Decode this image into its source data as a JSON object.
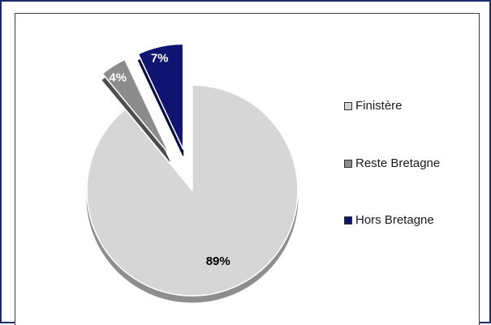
{
  "chart_data": {
    "type": "pie",
    "title": "",
    "slices": [
      {
        "label": "Finistère",
        "value": 89,
        "display": "89%",
        "color": "#d6d6d6",
        "side_color": "#8e8e8e",
        "label_color": "#000000",
        "exploded": false
      },
      {
        "label": "Reste Bretagne",
        "value": 4,
        "display": "4%",
        "color": "#8c8c8c",
        "side_color": "#4e4e4e",
        "label_color": "#ffffff",
        "exploded": true
      },
      {
        "label": "Hors Bretagne",
        "value": 7,
        "display": "7%",
        "color": "#0f1470",
        "side_color": "#050840",
        "label_color": "#ffffff",
        "exploded": true
      }
    ],
    "legend": {
      "placement": "right",
      "entries": [
        "Finistère",
        "Reste Bretagne",
        "Hors Bretagne"
      ]
    },
    "style": "3d-exploded"
  },
  "colors": {
    "frame_border": "#1d2d6b",
    "plot_border": "#3d3d3d",
    "background": "#ffffff"
  }
}
